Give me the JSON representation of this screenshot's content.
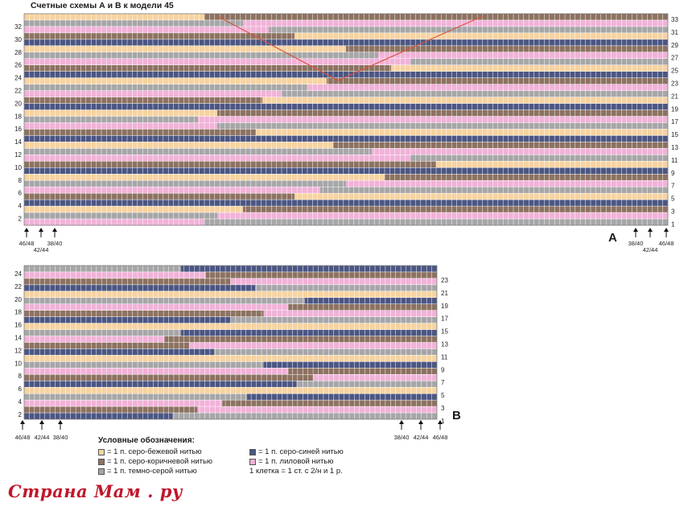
{
  "page": {
    "title": "Счетные схемы А и В к модели 45",
    "brand": "Страна Мам . ру"
  },
  "colors": {
    "beige": "#f7d3a0",
    "brown": "#8c7261",
    "gray": "#a6a6a8",
    "blue": "#4b5683",
    "lilac": "#f1b2d8",
    "grid": "#ffffff",
    "accent_line": "#d9553f"
  },
  "chart_a": {
    "label": "А",
    "left_row_numbers": [
      "32",
      "30",
      "28",
      "26",
      "24",
      "22",
      "20",
      "18",
      "16",
      "14",
      "12",
      "10",
      "8",
      "6",
      "4",
      "2"
    ],
    "right_row_numbers": [
      "33",
      "31",
      "29",
      "27",
      "25",
      "23",
      "21",
      "19",
      "17",
      "15",
      "13",
      "11",
      "9",
      "7",
      "5",
      "3",
      "1"
    ],
    "left_markers": [
      "46/48",
      "42/44",
      "38/40"
    ],
    "right_markers": [
      "38/40",
      "42/44",
      "46/48"
    ]
  },
  "chart_b": {
    "label": "В",
    "left_row_numbers": [
      "24",
      "22",
      "20",
      "18",
      "16",
      "14",
      "12",
      "10",
      "8",
      "6",
      "4",
      "2"
    ],
    "right_row_numbers": [
      "23",
      "21",
      "19",
      "17",
      "15",
      "13",
      "11",
      "9",
      "7",
      "5",
      "3",
      "1"
    ],
    "left_markers": [
      "46/48",
      "42/44",
      "38/40"
    ],
    "right_markers": [
      "38/40",
      "42/44",
      "46/48"
    ]
  },
  "legend": {
    "title": "Условные обозначения:",
    "items": [
      {
        "color": "beige",
        "text": "= 1 п. серо-бежевой нитью"
      },
      {
        "color": "brown",
        "text": "= 1 п. серо-коричневой нитью"
      },
      {
        "color": "gray",
        "text": "= 1 п. темно-серой нитью"
      },
      {
        "color": "blue",
        "text": "= 1 п. серо-синей нитью"
      },
      {
        "color": "lilac",
        "text": "= 1 п. лиловой нитью"
      }
    ],
    "note": "1 клетка = 1 ст. с 2/н и 1 р."
  }
}
